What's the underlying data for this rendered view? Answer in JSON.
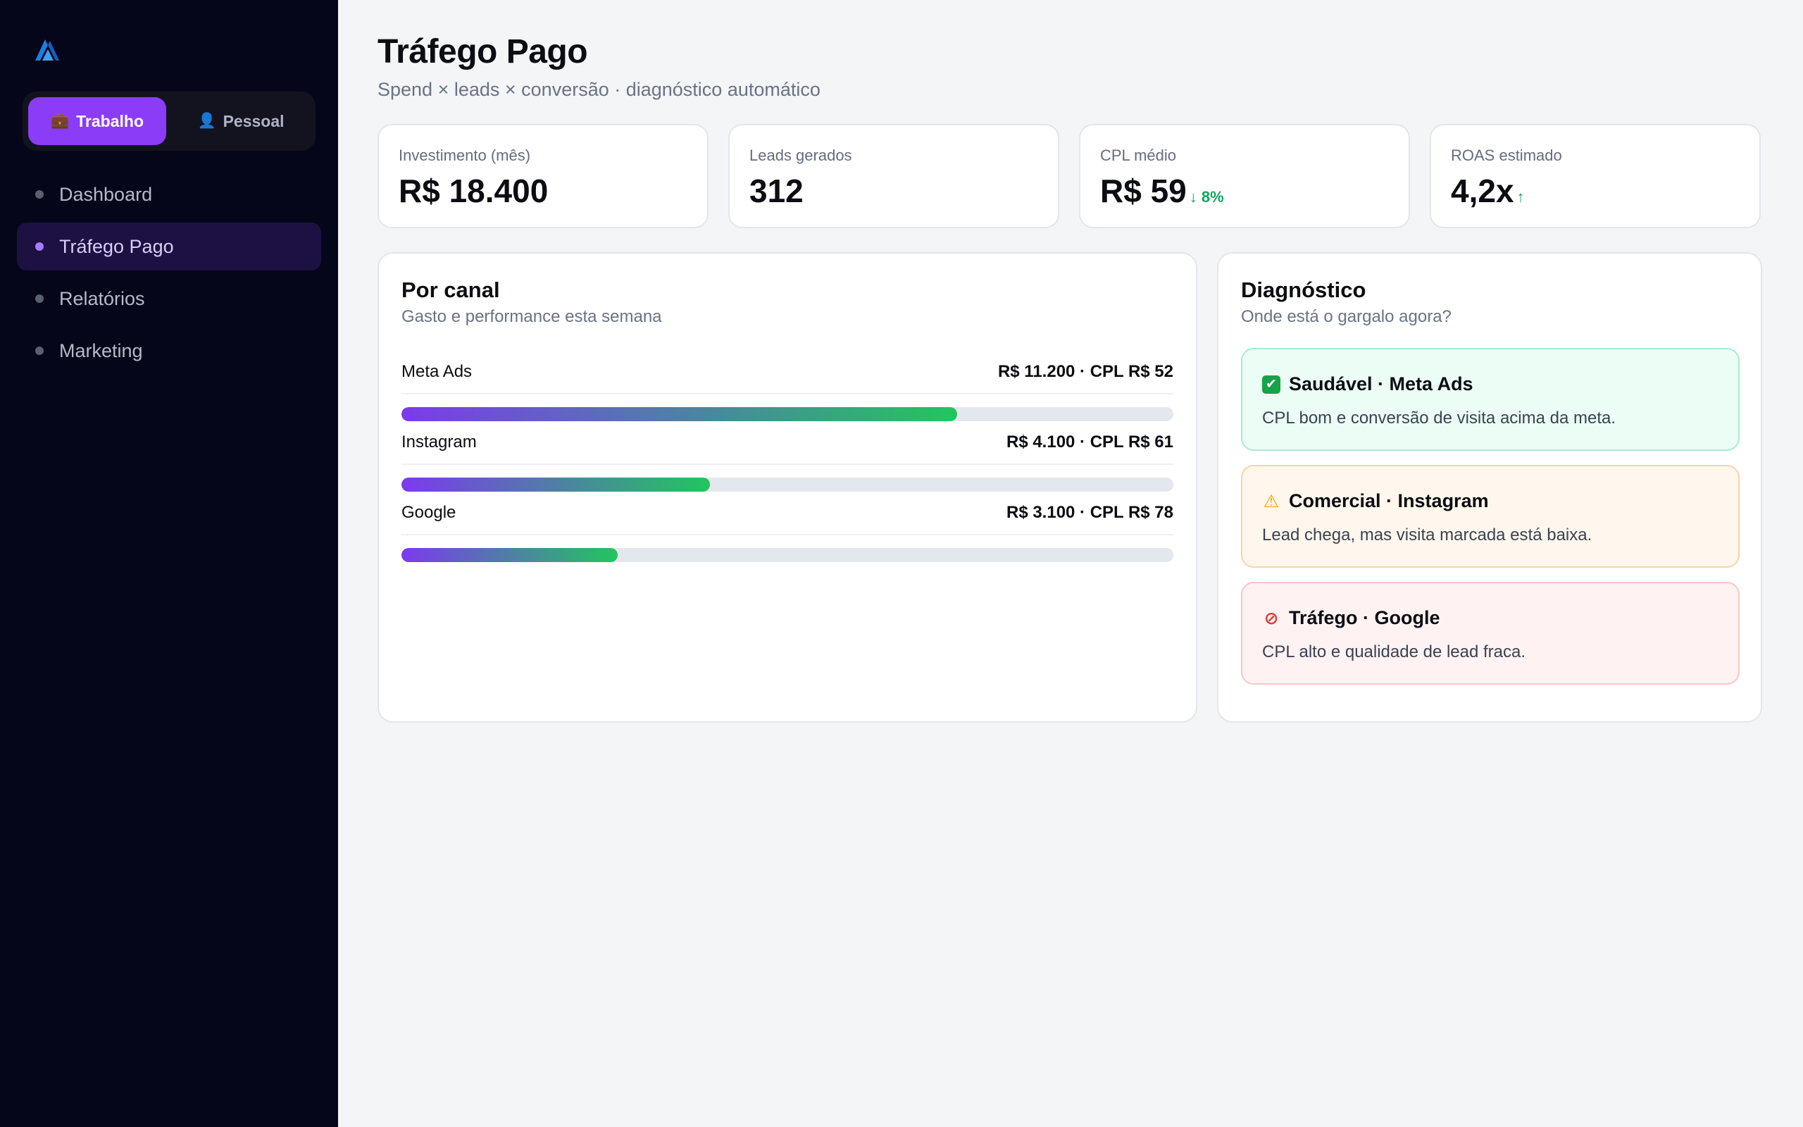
{
  "sidebar": {
    "workspace": {
      "work_icon": "briefcase-icon",
      "work_label": "Trabalho",
      "personal_icon": "user-icon",
      "personal_label": "Pessoal"
    },
    "nav": [
      {
        "label": "Dashboard",
        "active": false
      },
      {
        "label": "Tráfego Pago",
        "active": true
      },
      {
        "label": "Relatórios",
        "active": false
      },
      {
        "label": "Marketing",
        "active": false
      }
    ]
  },
  "header": {
    "title": "Tráfego Pago",
    "subtitle": "Spend × leads × conversão · diagnóstico automático"
  },
  "kpis": [
    {
      "label": "Investimento (mês)",
      "value": "R$ 18.400",
      "trend": ""
    },
    {
      "label": "Leads gerados",
      "value": "312",
      "trend": ""
    },
    {
      "label": "CPL médio",
      "value": "R$ 59",
      "trend": "↓ 8%"
    },
    {
      "label": "ROAS estimado",
      "value": "4,2x",
      "trend": "↑"
    }
  ],
  "channels_card": {
    "title": "Por canal",
    "subtitle": "Gasto e performance esta semana",
    "channels": [
      {
        "name": "Meta Ads",
        "stats": "R$ 11.200 · CPL R$ 52",
        "share": 0.72
      },
      {
        "name": "Instagram",
        "stats": "R$ 4.100 · CPL R$ 61",
        "share": 0.4
      },
      {
        "name": "Google",
        "stats": "R$ 3.100 · CPL R$ 78",
        "share": 0.28
      }
    ]
  },
  "diagnostics_card": {
    "title": "Diagnóstico",
    "subtitle": "Onde está o gargalo agora?",
    "items": [
      {
        "icon": "check-icon",
        "title": "Saudável · Meta Ads",
        "text": "CPL bom e conversão de visita acima da meta."
      },
      {
        "icon": "warning-icon",
        "title": "Comercial · Instagram",
        "text": "Lead chega, mas visita marcada está baixa."
      },
      {
        "icon": "prohibited-icon",
        "title": "Tráfego · Google",
        "text": "CPL alto e qualidade de lead fraca."
      }
    ]
  },
  "colors": {
    "sidebar_bg": "#05061a",
    "accent": "#8b3cf6",
    "positive": "#11a65a",
    "bar_start": "#7c3aed",
    "bar_end": "#22c55e"
  }
}
